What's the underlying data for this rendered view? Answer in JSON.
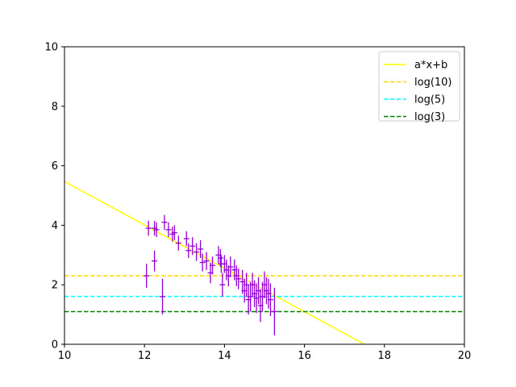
{
  "chart_data": {
    "type": "scatter",
    "xlim": [
      10,
      20
    ],
    "ylim": [
      0,
      10
    ],
    "xticks": [
      "10",
      "12",
      "14",
      "16",
      "18",
      "20"
    ],
    "yticks": [
      "0",
      "2",
      "4",
      "6",
      "8",
      "10"
    ],
    "grid": false,
    "legend_placement": "top-right",
    "legend": [
      {
        "label": "a*x+b",
        "color": "#ffff00",
        "style": "solid"
      },
      {
        "label": "log(10)",
        "color": "#ffd700",
        "style": "dashed"
      },
      {
        "label": "log(5)",
        "color": "#00ffff",
        "style": "dashed"
      },
      {
        "label": "log(3)",
        "color": "#008000",
        "style": "dashed"
      }
    ],
    "fit_line": {
      "color": "#ffff00",
      "points": [
        [
          10,
          5.47
        ],
        [
          17.5,
          0
        ]
      ]
    },
    "hlines": [
      {
        "y": 2.303,
        "color": "#ffd700"
      },
      {
        "y": 1.609,
        "color": "#00ffff"
      },
      {
        "y": 1.099,
        "color": "#008000"
      }
    ],
    "errorbar_color": "#9400d3",
    "series": [
      {
        "points": [
          [
            12.05,
            2.3,
            0.4
          ],
          [
            12.1,
            3.9,
            0.25
          ],
          [
            12.25,
            3.9,
            0.25
          ],
          [
            12.25,
            2.8,
            0.35
          ],
          [
            12.3,
            3.85,
            0.25
          ],
          [
            12.45,
            1.6,
            0.6
          ],
          [
            12.5,
            4.1,
            0.25
          ],
          [
            12.6,
            3.85,
            0.25
          ],
          [
            12.7,
            3.7,
            0.25
          ],
          [
            12.75,
            3.75,
            0.25
          ],
          [
            12.85,
            3.4,
            0.25
          ],
          [
            13.05,
            3.55,
            0.25
          ],
          [
            13.1,
            3.15,
            0.25
          ],
          [
            13.2,
            3.3,
            0.3
          ],
          [
            13.3,
            3.1,
            0.3
          ],
          [
            13.4,
            3.2,
            0.3
          ],
          [
            13.45,
            2.75,
            0.3
          ],
          [
            13.55,
            2.8,
            0.3
          ],
          [
            13.65,
            2.4,
            0.35
          ],
          [
            13.7,
            2.65,
            0.3
          ],
          [
            13.85,
            3.0,
            0.3
          ],
          [
            13.9,
            2.9,
            0.3
          ],
          [
            13.92,
            2.7,
            0.3
          ],
          [
            13.95,
            2.0,
            0.4
          ],
          [
            14.0,
            2.7,
            0.3
          ],
          [
            14.05,
            2.5,
            0.35
          ],
          [
            14.1,
            2.3,
            0.35
          ],
          [
            14.15,
            2.6,
            0.35
          ],
          [
            14.25,
            2.5,
            0.35
          ],
          [
            14.3,
            2.3,
            0.35
          ],
          [
            14.35,
            2.2,
            0.35
          ],
          [
            14.45,
            2.1,
            0.4
          ],
          [
            14.5,
            1.8,
            0.4
          ],
          [
            14.55,
            2.0,
            0.4
          ],
          [
            14.6,
            1.5,
            0.5
          ],
          [
            14.65,
            1.6,
            0.5
          ],
          [
            14.7,
            2.0,
            0.4
          ],
          [
            14.75,
            1.7,
            0.45
          ],
          [
            14.8,
            1.55,
            0.5
          ],
          [
            14.85,
            1.8,
            0.45
          ],
          [
            14.9,
            1.3,
            0.55
          ],
          [
            14.95,
            1.6,
            0.5
          ],
          [
            15.0,
            2.0,
            0.45
          ],
          [
            15.05,
            1.8,
            0.45
          ],
          [
            15.1,
            1.7,
            0.5
          ],
          [
            15.15,
            1.5,
            0.55
          ],
          [
            15.25,
            1.1,
            0.8
          ]
        ]
      }
    ]
  }
}
